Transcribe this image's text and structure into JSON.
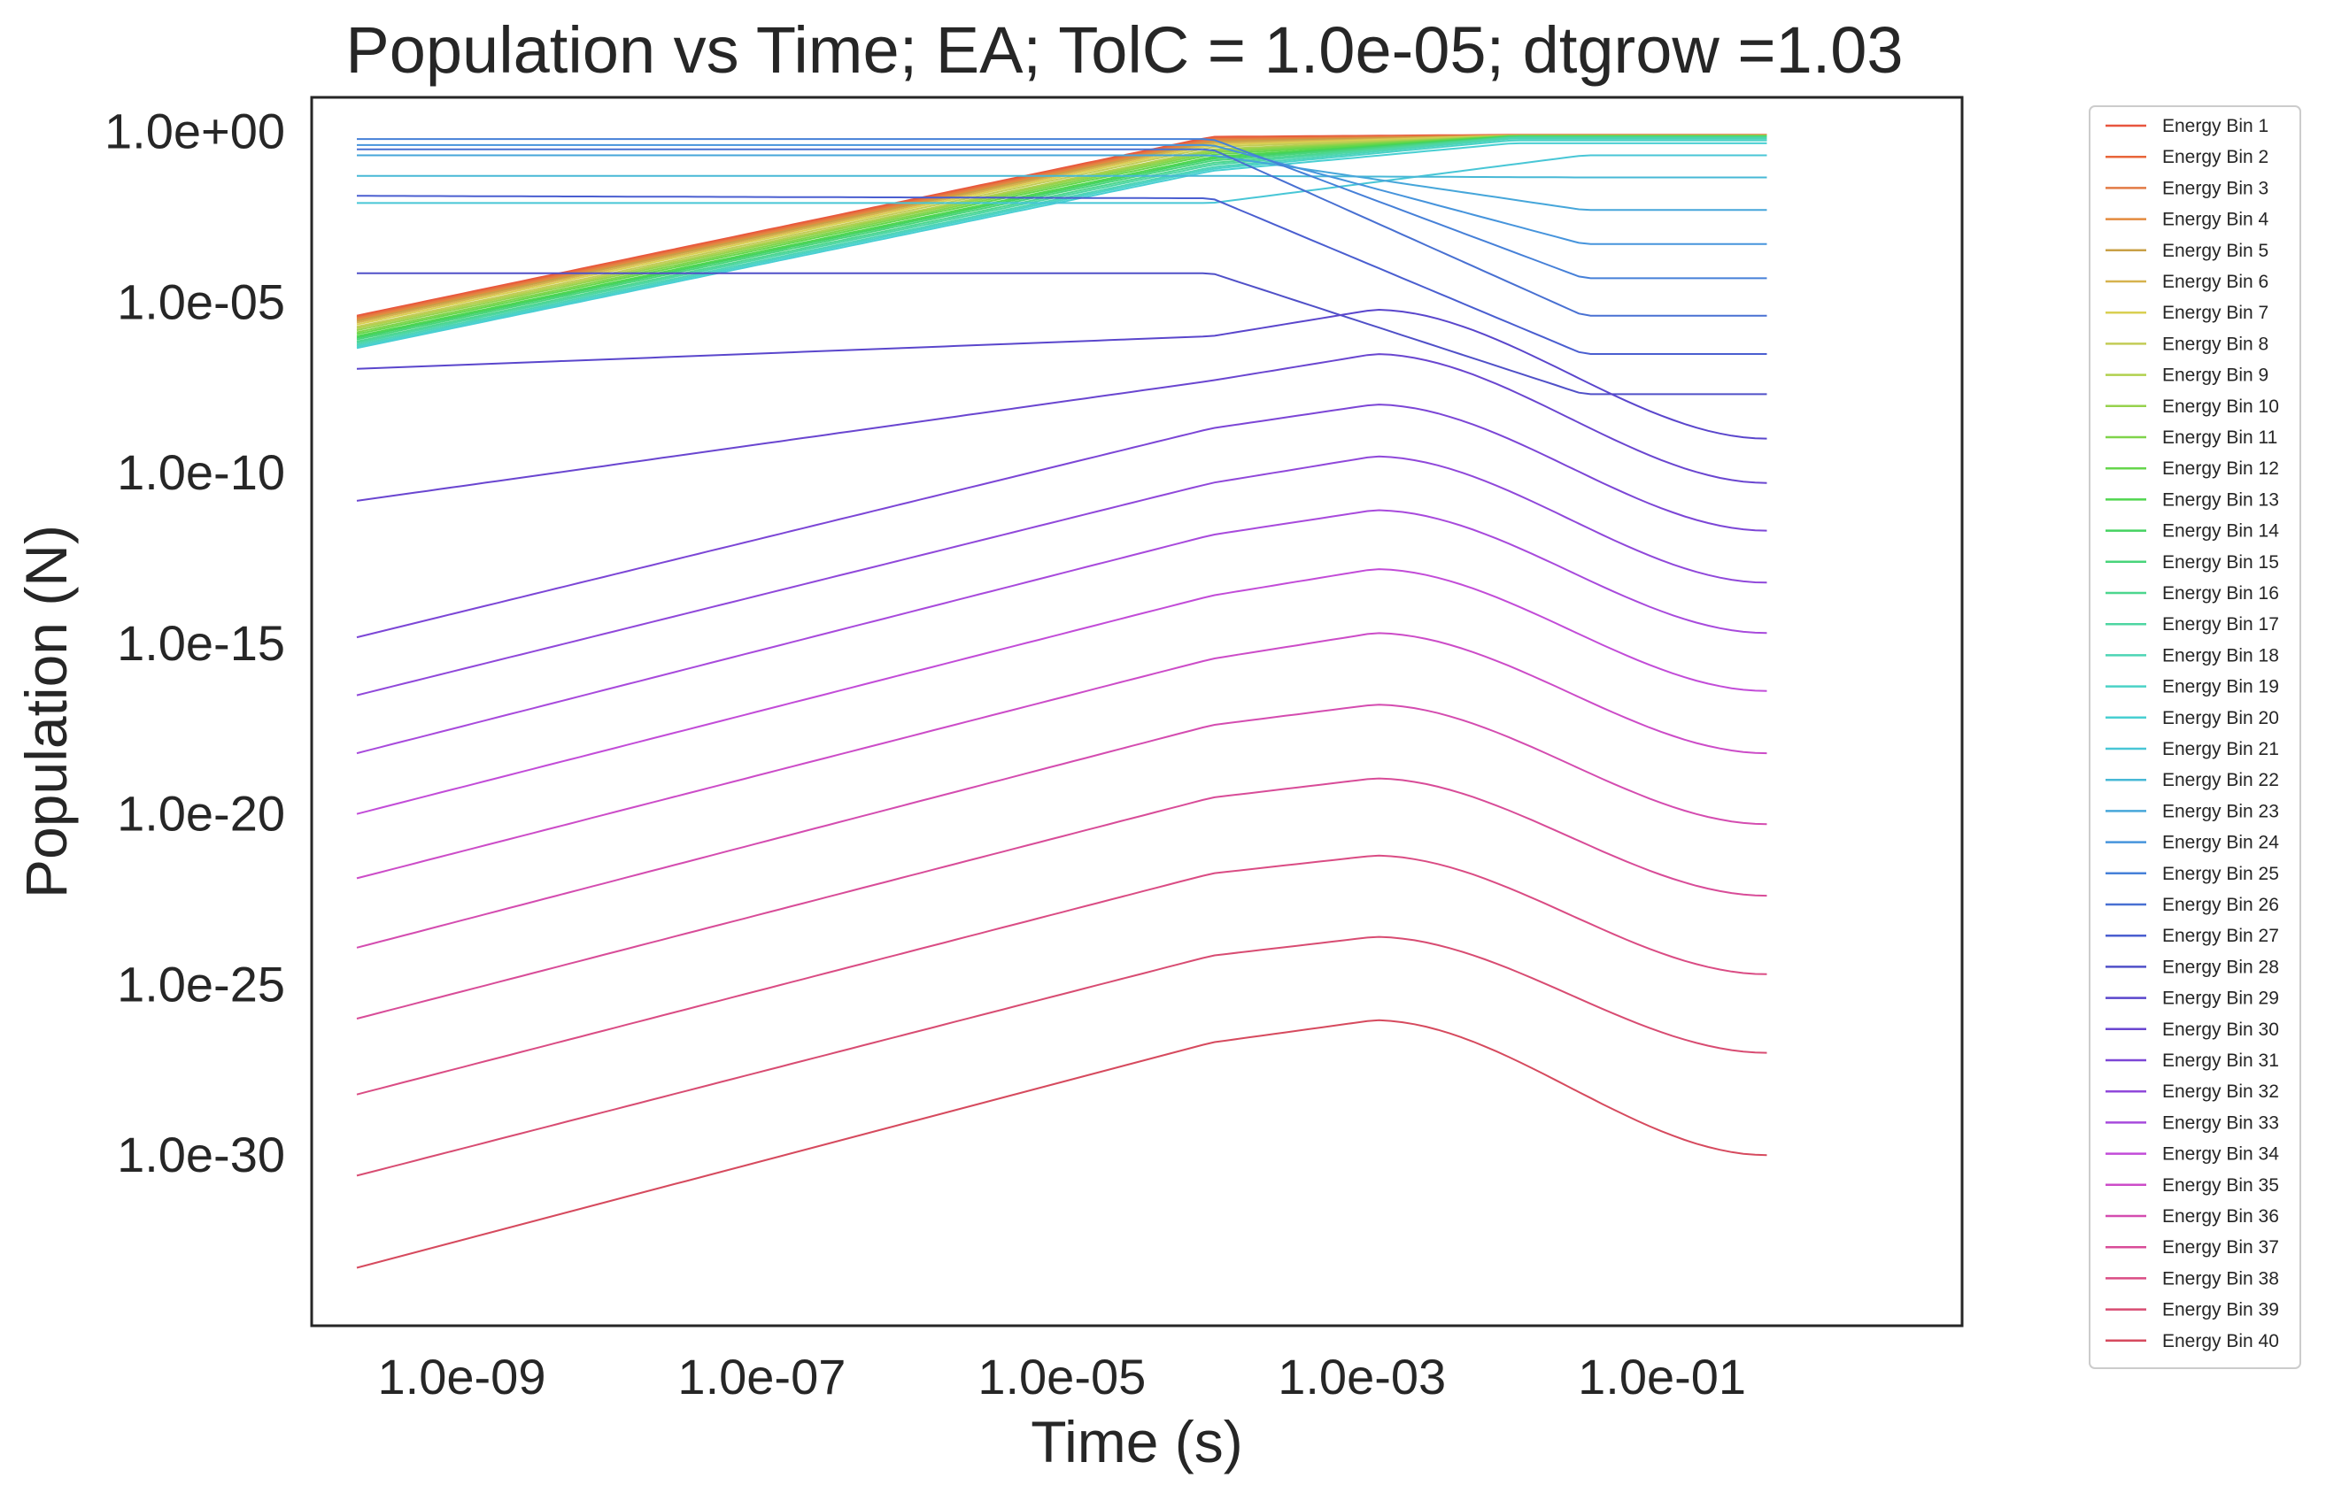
{
  "chart_data": {
    "type": "line",
    "title": "Population vs Time; EA; TolC = 1.0e-05; dtgrow =1.03",
    "xlabel": "Time (s)",
    "ylabel": "Population (N)",
    "xscale": "log",
    "yscale": "log",
    "xlim": [
      1e-10,
      10
    ],
    "ylim": [
      1e-35,
      10
    ],
    "xticks": [
      1e-09,
      1e-07,
      1e-05,
      0.001,
      0.1
    ],
    "xtick_labels": [
      "1.0e-09",
      "1.0e-07",
      "1.0e-05",
      "1.0e-03",
      "1.0e-01"
    ],
    "yticks": [
      1.0,
      1e-05,
      1e-10,
      1e-15,
      1e-20,
      1e-25,
      1e-30
    ],
    "ytick_labels": [
      "1.0e+00",
      "1.0e-05",
      "1.0e-10",
      "1.0e-15",
      "1.0e-20",
      "1.0e-25",
      "1.0e-30"
    ],
    "grid": false,
    "legend_position": "outside-right",
    "series": [
      {
        "name": "Energy Bin 1",
        "color": "#e8553e",
        "x": [
          2e-10,
          0.0001,
          0.01,
          0.5
        ],
        "y": [
          4e-06,
          0.7,
          0.8,
          0.8
        ]
      },
      {
        "name": "Energy Bin 2",
        "color": "#e8663a",
        "x": [
          2e-10,
          0.0001,
          0.01,
          0.5
        ],
        "y": [
          3.7e-06,
          0.65,
          0.78,
          0.78
        ]
      },
      {
        "name": "Energy Bin 3",
        "color": "#e27a44",
        "x": [
          2e-10,
          0.0001,
          0.01,
          0.5
        ],
        "y": [
          3.4e-06,
          0.6,
          0.78,
          0.78
        ]
      },
      {
        "name": "Energy Bin 4",
        "color": "#e38a3e",
        "x": [
          2e-10,
          0.0001,
          0.01,
          0.5
        ],
        "y": [
          3.1e-06,
          0.55,
          0.77,
          0.77
        ]
      },
      {
        "name": "Energy Bin 5",
        "color": "#c8a046",
        "x": [
          2e-10,
          0.0001,
          0.01,
          0.5
        ],
        "y": [
          2.8e-06,
          0.5,
          0.77,
          0.77
        ]
      },
      {
        "name": "Energy Bin 6",
        "color": "#d6b24e",
        "x": [
          2e-10,
          0.0001,
          0.01,
          0.5
        ],
        "y": [
          2.5e-06,
          0.45,
          0.76,
          0.76
        ]
      },
      {
        "name": "Energy Bin 7",
        "color": "#d9cf52",
        "x": [
          2e-10,
          0.0001,
          0.01,
          0.5
        ],
        "y": [
          2.2e-06,
          0.4,
          0.76,
          0.76
        ]
      },
      {
        "name": "Energy Bin 8",
        "color": "#c3cc56",
        "x": [
          2e-10,
          0.0001,
          0.01,
          0.5
        ],
        "y": [
          1.9e-06,
          0.35,
          0.75,
          0.75
        ]
      },
      {
        "name": "Energy Bin 9",
        "color": "#b0d04e",
        "x": [
          2e-10,
          0.0001,
          0.01,
          0.5
        ],
        "y": [
          1.7e-06,
          0.3,
          0.75,
          0.75
        ]
      },
      {
        "name": "Energy Bin 10",
        "color": "#96d24c",
        "x": [
          2e-10,
          0.0001,
          0.01,
          0.5
        ],
        "y": [
          1.5e-06,
          0.27,
          0.74,
          0.74
        ]
      },
      {
        "name": "Energy Bin 11",
        "color": "#7fd44a",
        "x": [
          2e-10,
          0.0001,
          0.01,
          0.5
        ],
        "y": [
          1.3e-06,
          0.24,
          0.74,
          0.74
        ]
      },
      {
        "name": "Energy Bin 12",
        "color": "#66d64c",
        "x": [
          2e-10,
          0.0001,
          0.01,
          0.5
        ],
        "y": [
          1.15e-06,
          0.21,
          0.73,
          0.73
        ]
      },
      {
        "name": "Energy Bin 13",
        "color": "#4fd64e",
        "x": [
          2e-10,
          0.0001,
          0.01,
          0.5
        ],
        "y": [
          1e-06,
          0.18,
          0.72,
          0.72
        ]
      },
      {
        "name": "Energy Bin 14",
        "color": "#44d260",
        "x": [
          2e-10,
          0.0001,
          0.01,
          0.5
        ],
        "y": [
          9e-07,
          0.16,
          0.71,
          0.71
        ]
      },
      {
        "name": "Energy Bin 15",
        "color": "#48d47a",
        "x": [
          2e-10,
          0.0001,
          0.01,
          0.5
        ],
        "y": [
          8e-07,
          0.14,
          0.7,
          0.7
        ]
      },
      {
        "name": "Energy Bin 16",
        "color": "#4cd68e",
        "x": [
          2e-10,
          0.0001,
          0.01,
          0.5
        ],
        "y": [
          7e-07,
          0.12,
          0.68,
          0.68
        ]
      },
      {
        "name": "Energy Bin 17",
        "color": "#4ed6a2",
        "x": [
          2e-10,
          0.0001,
          0.01,
          0.5
        ],
        "y": [
          6.3e-07,
          0.105,
          0.66,
          0.66
        ]
      },
      {
        "name": "Energy Bin 18",
        "color": "#4cd4b4",
        "x": [
          2e-10,
          0.0001,
          0.01,
          0.5
        ],
        "y": [
          5.6e-07,
          0.09,
          0.62,
          0.62
        ]
      },
      {
        "name": "Energy Bin 19",
        "color": "#4ad2c6",
        "x": [
          2e-10,
          0.0001,
          0.01,
          0.5
        ],
        "y": [
          5e-07,
          0.08,
          0.55,
          0.55
        ]
      },
      {
        "name": "Energy Bin 20",
        "color": "#48cfd2",
        "x": [
          2e-10,
          0.0001,
          0.01,
          0.5
        ],
        "y": [
          4.5e-07,
          0.07,
          0.45,
          0.45
        ]
      },
      {
        "name": "Energy Bin 21",
        "color": "#48c6d6",
        "x": [
          2e-10,
          0.0001,
          0.03,
          0.5
        ],
        "y": [
          0.008,
          0.008,
          0.2,
          0.2
        ]
      },
      {
        "name": "Energy Bin 22",
        "color": "#47b8d6",
        "x": [
          2e-10,
          0.0001,
          0.03,
          0.5
        ],
        "y": [
          0.05,
          0.05,
          0.045,
          0.045
        ]
      },
      {
        "name": "Energy Bin 23",
        "color": "#46a6da",
        "x": [
          2e-10,
          0.0001,
          0.03,
          0.5
        ],
        "y": [
          0.2,
          0.2,
          0.005,
          0.005
        ]
      },
      {
        "name": "Energy Bin 24",
        "color": "#4694dc",
        "x": [
          2e-10,
          0.0001,
          0.03,
          0.5
        ],
        "y": [
          0.4,
          0.4,
          0.0005,
          0.0005
        ]
      },
      {
        "name": "Energy Bin 25",
        "color": "#4680d8",
        "x": [
          2e-10,
          0.0001,
          0.03,
          0.5
        ],
        "y": [
          0.6,
          0.6,
          5e-05,
          5e-05
        ]
      },
      {
        "name": "Energy Bin 26",
        "color": "#4870d2",
        "x": [
          2e-10,
          0.0001,
          0.03,
          0.5
        ],
        "y": [
          0.3,
          0.3,
          4e-06,
          4e-06
        ]
      },
      {
        "name": "Energy Bin 27",
        "color": "#4a5ed0",
        "x": [
          2e-10,
          0.0001,
          0.03,
          0.5
        ],
        "y": [
          0.013,
          0.011,
          3e-07,
          3e-07
        ]
      },
      {
        "name": "Energy Bin 28",
        "color": "#5050c8",
        "x": [
          2e-10,
          0.0001,
          0.03,
          0.5
        ],
        "y": [
          7e-05,
          7e-05,
          2e-08,
          2e-08
        ]
      },
      {
        "name": "Energy Bin 29",
        "color": "#5a46cc",
        "x": [
          2e-10,
          0.0001,
          0.0012,
          0.5
        ],
        "y": [
          1.1e-07,
          1e-06,
          6e-06,
          1e-09
        ]
      },
      {
        "name": "Energy Bin 30",
        "color": "#6a46d0",
        "x": [
          2e-10,
          0.0001,
          0.0012,
          0.5
        ],
        "y": [
          1.5e-11,
          5e-08,
          3e-07,
          5e-11
        ]
      },
      {
        "name": "Energy Bin 31",
        "color": "#7c46d6",
        "x": [
          2e-10,
          0.0001,
          0.0012,
          0.5
        ],
        "y": [
          1.5e-15,
          2e-09,
          1e-08,
          2e-12
        ]
      },
      {
        "name": "Energy Bin 32",
        "color": "#9048da",
        "x": [
          2e-10,
          0.0001,
          0.0012,
          0.5
        ],
        "y": [
          3e-17,
          5e-11,
          3e-10,
          6e-14
        ]
      },
      {
        "name": "Energy Bin 33",
        "color": "#a84adc",
        "x": [
          2e-10,
          0.0001,
          0.0012,
          0.5
        ],
        "y": [
          6e-19,
          1.5e-12,
          8e-12,
          2e-15
        ]
      },
      {
        "name": "Energy Bin 34",
        "color": "#c24cd8",
        "x": [
          2e-10,
          0.0001,
          0.0012,
          0.5
        ],
        "y": [
          1e-20,
          2.5e-14,
          1.5e-13,
          4e-17
        ]
      },
      {
        "name": "Energy Bin 35",
        "color": "#cc4cc8",
        "x": [
          2e-10,
          0.0001,
          0.0012,
          0.5
        ],
        "y": [
          1.3e-22,
          3.5e-16,
          2e-15,
          6e-19
        ]
      },
      {
        "name": "Energy Bin 36",
        "color": "#d44cb0",
        "x": [
          2e-10,
          0.0001,
          0.0012,
          0.5
        ],
        "y": [
          1.2e-24,
          4e-18,
          1.6e-17,
          5e-21
        ]
      },
      {
        "name": "Energy Bin 37",
        "color": "#d84c98",
        "x": [
          2e-10,
          0.0001,
          0.0012,
          0.5
        ],
        "y": [
          1e-26,
          3e-20,
          1.1e-19,
          4e-23
        ]
      },
      {
        "name": "Energy Bin 38",
        "color": "#da4c84",
        "x": [
          2e-10,
          0.0001,
          0.0012,
          0.5
        ],
        "y": [
          6e-29,
          1.8e-22,
          6e-22,
          2e-25
        ]
      },
      {
        "name": "Energy Bin 39",
        "color": "#d84c72",
        "x": [
          2e-10,
          0.0001,
          0.0012,
          0.5
        ],
        "y": [
          2.5e-31,
          7e-25,
          2.5e-24,
          1e-27
        ]
      },
      {
        "name": "Energy Bin 40",
        "color": "#d64a5e",
        "x": [
          2e-10,
          0.0001,
          0.0012,
          0.5
        ],
        "y": [
          5e-34,
          2e-27,
          9e-27,
          1e-30
        ]
      }
    ]
  }
}
